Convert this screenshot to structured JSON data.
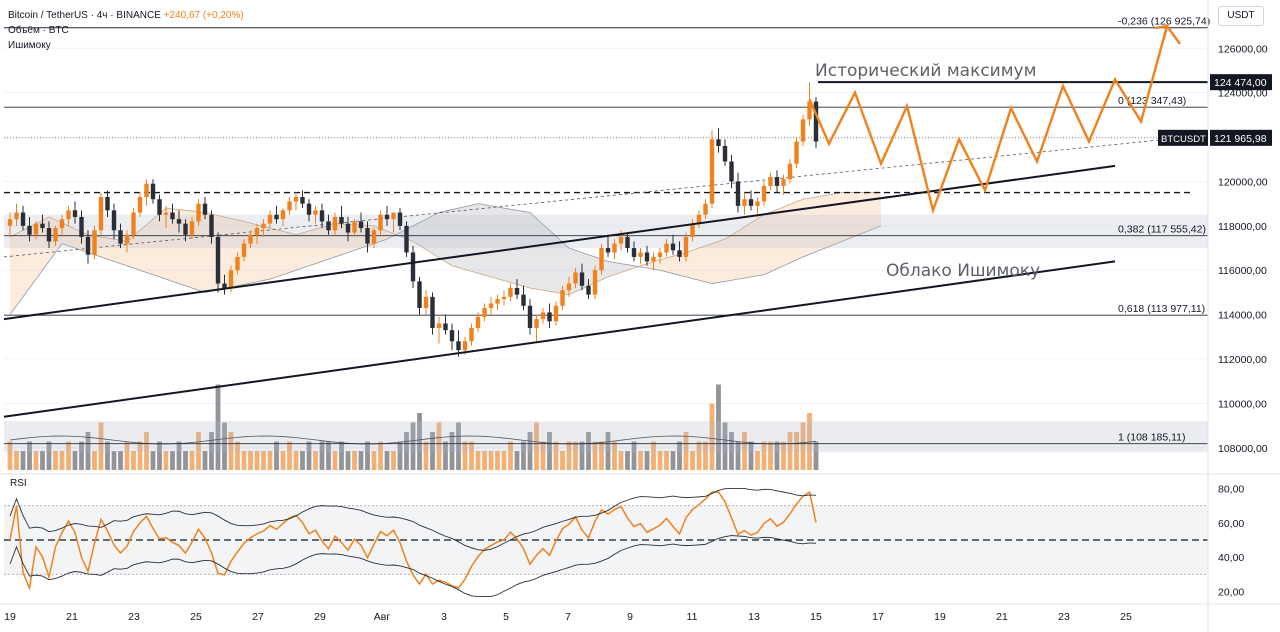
{
  "header": {
    "symbol_line": "Bitcoin / TetherUS · 4ч · BINANCE",
    "change": "+240,67 (+0,20%)",
    "volume_label": "Объём · BTC",
    "ichimoku_label": "Ишимоку",
    "currency_button": "USDT"
  },
  "rsi": {
    "label": "RSI"
  },
  "chart_data": {
    "type": "candlestick",
    "symbol": "BTCUSDT",
    "timeframe": "4h",
    "current_price_label": "121 965,98",
    "symbol_tag": "BTCUSDT",
    "ath_price_label": "124 474,00",
    "price_axis": {
      "range": [
        107000,
        127500
      ],
      "ticks": [
        {
          "v": 126000,
          "label": "126000,00"
        },
        {
          "v": 124000,
          "label": "124000,00"
        },
        {
          "v": 122000,
          "label": "122000,00"
        },
        {
          "v": 120000,
          "label": "120000,00"
        },
        {
          "v": 118000,
          "label": "118000,00"
        },
        {
          "v": 116000,
          "label": "116000,00"
        },
        {
          "v": 114000,
          "label": "114000,00"
        },
        {
          "v": 112000,
          "label": "112000,00"
        },
        {
          "v": 110000,
          "label": "110000,00"
        },
        {
          "v": 108000,
          "label": "108000,00"
        }
      ]
    },
    "time_axis": {
      "labels": [
        "19",
        "21",
        "23",
        "25",
        "27",
        "29",
        "Авг",
        "3",
        "5",
        "7",
        "9",
        "11",
        "13",
        "15",
        "17",
        "19",
        "21",
        "23",
        "25"
      ]
    },
    "fib_levels": [
      {
        "price": 126925.74,
        "label": "-0,236 (126 925,74)"
      },
      {
        "price": 123347.43,
        "label": "0 (123 347,43)"
      },
      {
        "price": 117555.42,
        "label": "0,382 (117 555,42)"
      },
      {
        "price": 113977.11,
        "label": "0,618 (113 977,11)"
      },
      {
        "price": 108185.11,
        "label": "1 (108 185,11)"
      }
    ],
    "annotations": [
      {
        "text": "Исторический максимум"
      },
      {
        "text": "Облако Ишимоку"
      }
    ],
    "ath_level": 124474,
    "support_dashed": 119500,
    "rsi_axis": {
      "ticks": [
        {
          "v": 80,
          "label": "80,00"
        },
        {
          "v": 60,
          "label": "60,00"
        },
        {
          "v": 40,
          "label": "40,00"
        },
        {
          "v": 20,
          "label": "20,00"
        }
      ],
      "overbought": 70,
      "oversold": 30,
      "mid": 50
    },
    "candles": [
      [
        118000,
        118600,
        117500,
        118300
      ],
      [
        118300,
        119000,
        118000,
        118600
      ],
      [
        118600,
        118900,
        117800,
        118000
      ],
      [
        118000,
        118400,
        117300,
        117600
      ],
      [
        117600,
        118200,
        117400,
        118100
      ],
      [
        118100,
        118500,
        117700,
        117900
      ],
      [
        117900,
        118200,
        117000,
        117300
      ],
      [
        117300,
        118000,
        117100,
        117900
      ],
      [
        117900,
        118500,
        117600,
        118300
      ],
      [
        118300,
        118900,
        118000,
        118700
      ],
      [
        118700,
        119100,
        118100,
        118400
      ],
      [
        118400,
        118700,
        117200,
        117500
      ],
      [
        117500,
        117800,
        116300,
        116700
      ],
      [
        116700,
        118000,
        116500,
        117800
      ],
      [
        117800,
        119500,
        117600,
        119300
      ],
      [
        119300,
        119600,
        118400,
        118700
      ],
      [
        118700,
        119000,
        117400,
        117800
      ],
      [
        117800,
        118100,
        117000,
        117200
      ],
      [
        117200,
        117800,
        116800,
        117600
      ],
      [
        117600,
        118800,
        117400,
        118600
      ],
      [
        118600,
        119500,
        118400,
        119300
      ],
      [
        119300,
        120100,
        118900,
        119900
      ],
      [
        119900,
        120100,
        119000,
        119200
      ],
      [
        119200,
        119400,
        118200,
        118500
      ],
      [
        118500,
        118900,
        117900,
        118600
      ],
      [
        118600,
        119000,
        118100,
        118300
      ],
      [
        118300,
        118700,
        117700,
        118100
      ],
      [
        118100,
        118300,
        117300,
        117600
      ],
      [
        117600,
        118400,
        117400,
        118200
      ],
      [
        118200,
        119200,
        118000,
        119000
      ],
      [
        119000,
        119300,
        118300,
        118500
      ],
      [
        118500,
        118700,
        117200,
        117500
      ],
      [
        117500,
        117700,
        115000,
        115400
      ],
      [
        115400,
        115800,
        114900,
        115200
      ],
      [
        115200,
        116200,
        115000,
        116000
      ],
      [
        116000,
        116800,
        115800,
        116600
      ],
      [
        116600,
        117400,
        116400,
        117200
      ],
      [
        117200,
        117800,
        117000,
        117600
      ],
      [
        117600,
        118100,
        117200,
        117900
      ],
      [
        117900,
        118300,
        117500,
        118100
      ],
      [
        118100,
        118700,
        117900,
        118500
      ],
      [
        118500,
        118900,
        118100,
        118300
      ],
      [
        118300,
        118800,
        118000,
        118700
      ],
      [
        118700,
        119300,
        118500,
        119100
      ],
      [
        119100,
        119500,
        118700,
        119300
      ],
      [
        119300,
        119600,
        118800,
        119000
      ],
      [
        119000,
        119200,
        118200,
        118500
      ],
      [
        118500,
        118900,
        118100,
        118700
      ],
      [
        118700,
        119000,
        117900,
        118200
      ],
      [
        118200,
        118500,
        117600,
        117800
      ],
      [
        117800,
        118600,
        117600,
        118400
      ],
      [
        118400,
        118900,
        117900,
        118100
      ],
      [
        118100,
        118400,
        117300,
        117700
      ],
      [
        117700,
        118300,
        117500,
        118200
      ],
      [
        118200,
        118600,
        117700,
        117900
      ],
      [
        117900,
        118200,
        116800,
        117200
      ],
      [
        117200,
        117900,
        117000,
        117800
      ],
      [
        117800,
        118700,
        117600,
        118500
      ],
      [
        118500,
        118900,
        118000,
        118300
      ],
      [
        118300,
        118600,
        117700,
        118600
      ],
      [
        118600,
        118800,
        117800,
        118000
      ],
      [
        118000,
        118200,
        116600,
        116800
      ],
      [
        116800,
        117100,
        115200,
        115500
      ],
      [
        115500,
        115700,
        114000,
        114300
      ],
      [
        114300,
        115100,
        114000,
        114800
      ],
      [
        114800,
        115000,
        113100,
        113400
      ],
      [
        113400,
        113900,
        112700,
        113600
      ],
      [
        113600,
        114000,
        113100,
        113300
      ],
      [
        113300,
        113600,
        112400,
        112800
      ],
      [
        112800,
        113300,
        112100,
        112400
      ],
      [
        112400,
        113000,
        112200,
        112800
      ],
      [
        112800,
        113600,
        112600,
        113400
      ],
      [
        113400,
        114100,
        113200,
        113900
      ],
      [
        113900,
        114500,
        113700,
        114300
      ],
      [
        114300,
        114800,
        114000,
        114500
      ],
      [
        114500,
        114900,
        114200,
        114700
      ],
      [
        114700,
        115100,
        114400,
        114800
      ],
      [
        114800,
        115400,
        114600,
        115200
      ],
      [
        115200,
        115600,
        114700,
        114900
      ],
      [
        114900,
        115300,
        114200,
        114400
      ],
      [
        114400,
        114700,
        113100,
        113400
      ],
      [
        113400,
        114000,
        112800,
        113800
      ],
      [
        113800,
        114300,
        113600,
        114100
      ],
      [
        114100,
        114500,
        113400,
        113700
      ],
      [
        113700,
        114600,
        113500,
        114400
      ],
      [
        114400,
        115300,
        114200,
        115100
      ],
      [
        115100,
        115700,
        114800,
        115400
      ],
      [
        115400,
        116100,
        115200,
        115900
      ],
      [
        115900,
        116300,
        115100,
        115300
      ],
      [
        115300,
        115600,
        114700,
        114900
      ],
      [
        114900,
        116200,
        114700,
        116000
      ],
      [
        116000,
        117200,
        115800,
        117000
      ],
      [
        117000,
        117600,
        116600,
        116800
      ],
      [
        116800,
        117400,
        116500,
        117200
      ],
      [
        117200,
        117800,
        116900,
        117500
      ],
      [
        117500,
        117700,
        116800,
        117000
      ],
      [
        117000,
        117300,
        116400,
        116600
      ],
      [
        116600,
        117000,
        116300,
        116800
      ],
      [
        116800,
        117100,
        116200,
        116400
      ],
      [
        116400,
        116800,
        116000,
        116600
      ],
      [
        116600,
        117000,
        116300,
        116800
      ],
      [
        116800,
        117400,
        116600,
        117200
      ],
      [
        117200,
        117600,
        116700,
        116900
      ],
      [
        116900,
        117300,
        116400,
        116600
      ],
      [
        116600,
        117700,
        116400,
        117500
      ],
      [
        117500,
        118300,
        117300,
        118100
      ],
      [
        118100,
        118700,
        117900,
        118500
      ],
      [
        118500,
        119200,
        118300,
        119000
      ],
      [
        119000,
        122300,
        118800,
        121900
      ],
      [
        121900,
        122400,
        121300,
        121600
      ],
      [
        121600,
        121900,
        120700,
        120900
      ],
      [
        120900,
        121200,
        119700,
        120000
      ],
      [
        120000,
        120400,
        118600,
        118900
      ],
      [
        118900,
        119500,
        118500,
        119200
      ],
      [
        119200,
        119600,
        118700,
        118900
      ],
      [
        118900,
        119300,
        118400,
        119100
      ],
      [
        119100,
        120000,
        118900,
        119800
      ],
      [
        119800,
        120400,
        119600,
        120200
      ],
      [
        120200,
        120500,
        119500,
        119800
      ],
      [
        119800,
        120300,
        119400,
        120100
      ],
      [
        120100,
        121000,
        119900,
        120800
      ],
      [
        120800,
        122000,
        120600,
        121800
      ],
      [
        121800,
        123000,
        121600,
        122800
      ],
      [
        122800,
        124474,
        122500,
        123600
      ],
      [
        123600,
        123800,
        121500,
        121800
      ]
    ],
    "volumes": [
      3,
      2,
      2,
      3,
      2,
      2,
      3,
      2,
      2,
      3,
      2,
      3,
      4,
      2,
      5,
      3,
      2,
      2,
      3,
      2,
      3,
      4,
      2,
      3,
      2,
      2,
      3,
      2,
      2,
      4,
      2,
      4,
      9,
      5,
      4,
      3,
      2,
      2,
      2,
      2,
      2,
      3,
      2,
      3,
      2,
      2,
      3,
      2,
      3,
      3,
      2,
      3,
      2,
      2,
      2,
      3,
      2,
      3,
      2,
      2,
      3,
      4,
      5,
      6,
      3,
      4,
      5,
      3,
      4,
      5,
      3,
      3,
      2,
      2,
      2,
      2,
      2,
      3,
      2,
      3,
      4,
      5,
      3,
      4,
      3,
      2,
      3,
      3,
      3,
      4,
      3,
      3,
      4,
      3,
      2,
      2,
      3,
      2,
      2,
      3,
      2,
      2,
      2,
      3,
      4,
      2,
      3,
      3,
      7,
      9,
      5,
      4,
      3,
      4,
      3,
      2,
      3,
      3,
      3,
      3,
      4,
      4,
      5,
      6,
      3
    ],
    "ichimoku_span_a": [
      [
        0,
        117500
      ],
      [
        6,
        118400
      ],
      [
        12,
        117600
      ],
      [
        18,
        117300
      ],
      [
        24,
        118800
      ],
      [
        30,
        118600
      ],
      [
        36,
        118200
      ],
      [
        44,
        117600
      ],
      [
        50,
        118100
      ],
      [
        56,
        118000
      ],
      [
        62,
        117300
      ],
      [
        68,
        116200
      ],
      [
        74,
        115700
      ],
      [
        80,
        115200
      ],
      [
        86,
        114900
      ],
      [
        92,
        115700
      ],
      [
        98,
        116300
      ],
      [
        104,
        116800
      ],
      [
        110,
        117400
      ],
      [
        116,
        118500
      ],
      [
        122,
        119200
      ],
      [
        128,
        119500
      ],
      [
        134,
        119500
      ]
    ],
    "ichimoku_span_b": [
      [
        0,
        114000
      ],
      [
        8,
        117200
      ],
      [
        14,
        116600
      ],
      [
        22,
        115800
      ],
      [
        30,
        115000
      ],
      [
        40,
        115600
      ],
      [
        50,
        116600
      ],
      [
        58,
        117400
      ],
      [
        66,
        118600
      ],
      [
        72,
        119000
      ],
      [
        80,
        118600
      ],
      [
        86,
        117000
      ],
      [
        92,
        116400
      ],
      [
        100,
        116000
      ],
      [
        108,
        115400
      ],
      [
        116,
        115800
      ],
      [
        122,
        116600
      ],
      [
        128,
        117300
      ],
      [
        134,
        118000
      ]
    ],
    "trendlines": [
      {
        "from": [
          0,
          113800
        ],
        "to": [
          170,
          120700
        ]
      },
      {
        "from": [
          0,
          109400
        ],
        "to": [
          170,
          116400
        ]
      }
    ],
    "forecast_path": [
      [
        123,
        123700
      ],
      [
        126,
        121700
      ],
      [
        130,
        124000
      ],
      [
        134,
        120800
      ],
      [
        138,
        123400
      ],
      [
        142,
        118700
      ],
      [
        146,
        121900
      ],
      [
        150,
        119600
      ],
      [
        154,
        123300
      ],
      [
        158,
        120900
      ],
      [
        162,
        124300
      ],
      [
        166,
        121800
      ],
      [
        170,
        124600
      ],
      [
        174,
        122700
      ],
      [
        178,
        127000
      ],
      [
        180,
        126200
      ]
    ]
  }
}
